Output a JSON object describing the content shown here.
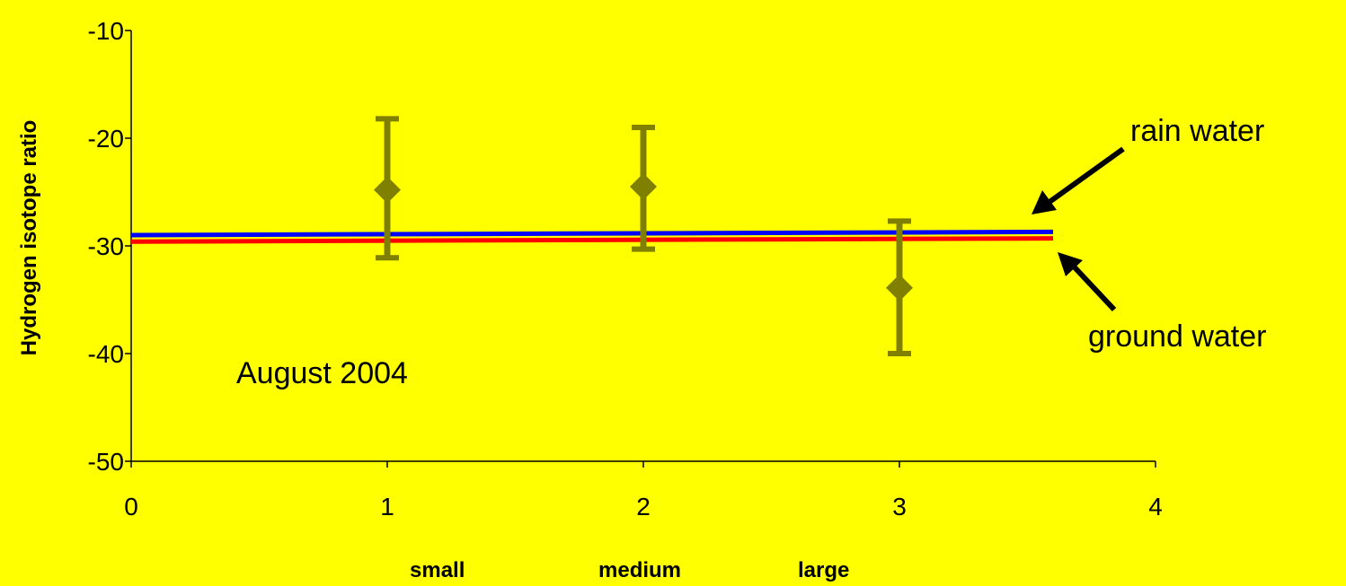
{
  "chart_data": {
    "type": "scatter",
    "ylabel": "Hydrogen isotope ratio",
    "xlim": [
      0,
      4
    ],
    "ylim": [
      -50,
      -10
    ],
    "x_ticks": [
      "0",
      "1",
      "2",
      "3",
      "4"
    ],
    "y_ticks": [
      "-10",
      "-20",
      "-30",
      "-40",
      "-50"
    ],
    "grid": false,
    "series": [
      {
        "points": [
          {
            "x": 1,
            "y": -24.8,
            "err_low": -31.1,
            "err_high": -18.2
          },
          {
            "x": 2,
            "y": -24.5,
            "err_low": -30.3,
            "err_high": -19.0
          },
          {
            "x": 3,
            "y": -33.9,
            "err_low": -40.0,
            "err_high": -27.7
          }
        ],
        "color": "#808000",
        "marker": "diamond"
      }
    ],
    "reference_lines": [
      {
        "label": "rain water",
        "x_start": 0,
        "x_end": 3.6,
        "y_start": -29.0,
        "y_end": -28.7,
        "color": "#0000FF"
      },
      {
        "label": "ground water",
        "x_start": 0,
        "x_end": 3.6,
        "y_start": -29.6,
        "y_end": -29.3,
        "color": "#FF0000"
      }
    ],
    "annotations": {
      "date": "August 2004",
      "rain": "rain water",
      "ground": "ground water"
    },
    "category_labels": [
      "small",
      "medium",
      "large"
    ]
  },
  "colors": {
    "background": "#FFFF00",
    "axis": "#000000",
    "series": "#808000",
    "arrow": "#000000"
  }
}
